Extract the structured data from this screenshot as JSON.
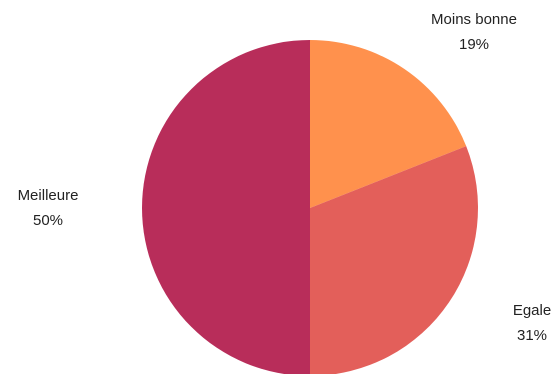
{
  "chart_data": {
    "type": "pie",
    "title": "",
    "slices": [
      {
        "label": "Moins bonne",
        "value": 19,
        "value_label": "19%",
        "color": "#ff914d"
      },
      {
        "label": "Egale",
        "value": 31,
        "value_label": "31%",
        "color": "#e35f5a"
      },
      {
        "label": "Meilleure",
        "value": 50,
        "value_label": "50%",
        "color": "#b82d5a"
      }
    ],
    "start_angle_deg": 0,
    "direction": "clockwise",
    "legend": "none"
  }
}
